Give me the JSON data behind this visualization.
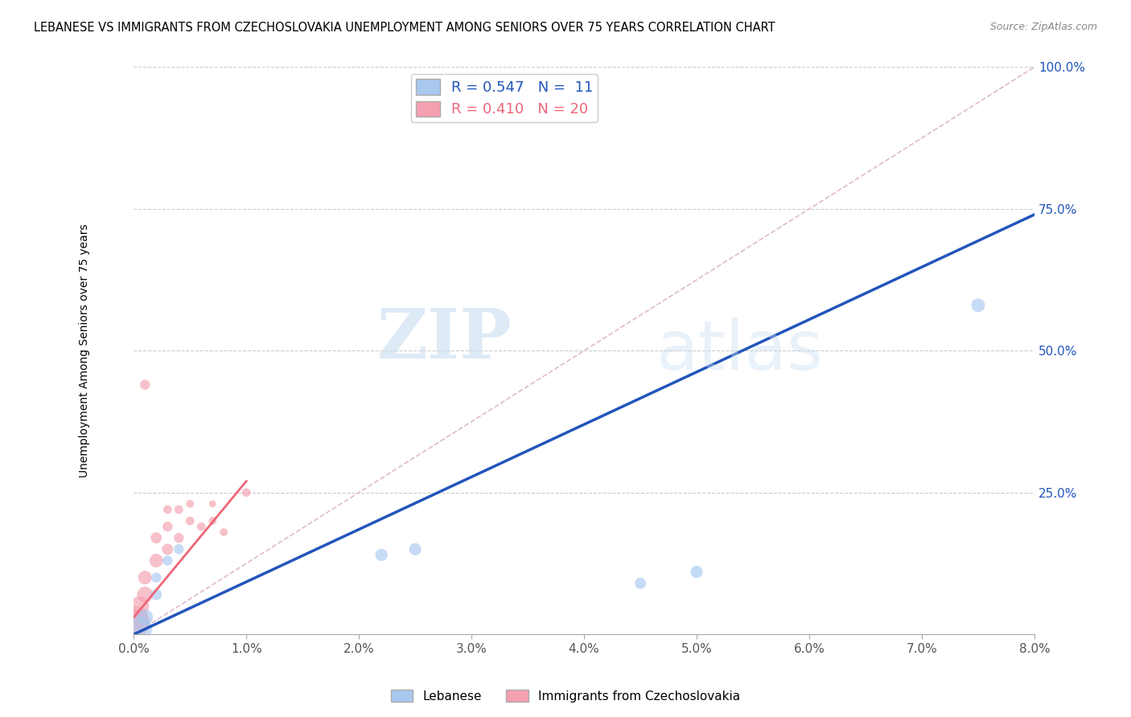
{
  "title": "LEBANESE VS IMMIGRANTS FROM CZECHOSLOVAKIA UNEMPLOYMENT AMONG SENIORS OVER 75 YEARS CORRELATION CHART",
  "source": "Source: ZipAtlas.com",
  "ylabel": "Unemployment Among Seniors over 75 years",
  "xlim": [
    0.0,
    0.08
  ],
  "ylim": [
    0.0,
    1.0
  ],
  "xtick_labels": [
    "0.0%",
    "1.0%",
    "2.0%",
    "3.0%",
    "4.0%",
    "5.0%",
    "6.0%",
    "7.0%",
    "8.0%"
  ],
  "xtick_vals": [
    0.0,
    0.01,
    0.02,
    0.03,
    0.04,
    0.05,
    0.06,
    0.07,
    0.08
  ],
  "ytick_labels": [
    "",
    "25.0%",
    "50.0%",
    "75.0%",
    "100.0%"
  ],
  "ytick_vals": [
    0.0,
    0.25,
    0.5,
    0.75,
    1.0
  ],
  "R_lebanese": 0.547,
  "N_lebanese": 11,
  "R_czech": 0.41,
  "N_czech": 20,
  "lebanese_color": "#A8C8F0",
  "czech_color": "#F4A0B0",
  "lebanese_line_color": "#2255BB",
  "czech_line_color": "#EE6677",
  "watermark_zip": "ZIP",
  "watermark_atlas": "atlas",
  "lebanese_x": [
    0.0005,
    0.001,
    0.002,
    0.002,
    0.003,
    0.004,
    0.022,
    0.025,
    0.045,
    0.05,
    0.075
  ],
  "lebanese_y": [
    0.01,
    0.03,
    0.07,
    0.1,
    0.13,
    0.15,
    0.14,
    0.15,
    0.09,
    0.11,
    0.58
  ],
  "lebanese_size": [
    500,
    200,
    100,
    80,
    80,
    80,
    120,
    120,
    100,
    120,
    150
  ],
  "czech_x": [
    0.0002,
    0.0003,
    0.0005,
    0.001,
    0.001,
    0.001,
    0.002,
    0.002,
    0.003,
    0.003,
    0.003,
    0.004,
    0.004,
    0.005,
    0.005,
    0.006,
    0.007,
    0.007,
    0.008,
    0.01
  ],
  "czech_y": [
    0.02,
    0.03,
    0.05,
    0.07,
    0.1,
    0.44,
    0.13,
    0.17,
    0.15,
    0.19,
    0.22,
    0.17,
    0.22,
    0.2,
    0.23,
    0.19,
    0.2,
    0.23,
    0.18,
    0.25
  ],
  "czech_size": [
    600,
    400,
    300,
    200,
    150,
    80,
    150,
    100,
    100,
    80,
    60,
    80,
    60,
    60,
    50,
    60,
    50,
    40,
    50,
    60
  ],
  "leb_line_x0": 0.0,
  "leb_line_y0": 0.0,
  "leb_line_x1": 0.08,
  "leb_line_y1": 0.74,
  "cz_line_x0": 0.0,
  "cz_line_y0": 0.03,
  "cz_line_x1": 0.01,
  "cz_line_y1": 0.27,
  "ref_line_x0": 0.0,
  "ref_line_y0": 0.0,
  "ref_line_x1": 0.08,
  "ref_line_y1": 1.0
}
